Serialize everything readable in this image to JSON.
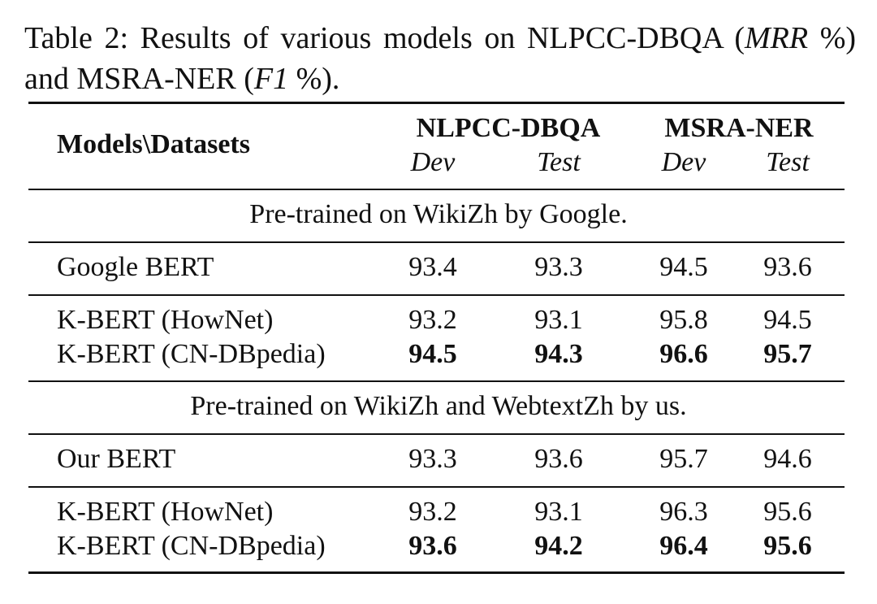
{
  "caption": {
    "parts": [
      "Table 2: Results of various models on NLPCC-DBQA (",
      "MRR",
      " %) and MSRA-NER (",
      "F1",
      " %)."
    ]
  },
  "table": {
    "corner": "Models\\Datasets",
    "groups": [
      "NLPCC-DBQA",
      "MSRA-NER"
    ],
    "columns": [
      "Dev",
      "Test",
      "Dev",
      "Test"
    ],
    "sections": [
      {
        "title": "Pre-trained on WikiZh by Google.",
        "blocks": [
          [
            {
              "model": "Google BERT",
              "values": [
                93.4,
                93.3,
                94.5,
                93.6
              ]
            }
          ],
          [
            {
              "model": "K-BERT (HowNet)",
              "values": [
                93.2,
                93.1,
                95.8,
                94.5
              ]
            },
            {
              "model": "K-BERT (CN-DBpedia)",
              "values": [
                94.5,
                94.3,
                96.6,
                95.7
              ],
              "bold": true
            }
          ]
        ]
      },
      {
        "title": "Pre-trained on WikiZh and WebtextZh by us.",
        "blocks": [
          [
            {
              "model": "Our BERT",
              "values": [
                93.3,
                93.6,
                95.7,
                94.6
              ]
            }
          ],
          [
            {
              "model": "K-BERT (HowNet)",
              "values": [
                93.2,
                93.1,
                96.3,
                95.6
              ]
            },
            {
              "model": "K-BERT (CN-DBpedia)",
              "values": [
                93.6,
                94.2,
                96.4,
                95.6
              ],
              "bold": true
            }
          ]
        ]
      }
    ]
  }
}
